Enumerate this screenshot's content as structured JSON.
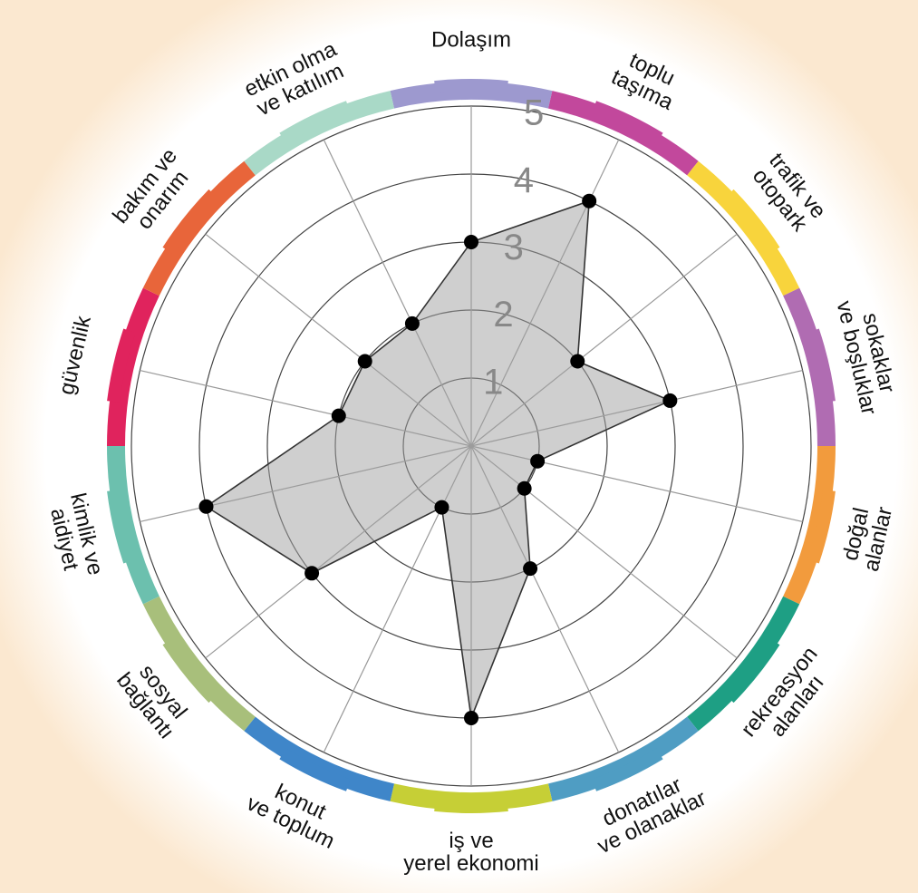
{
  "chart_data": {
    "type": "radar",
    "categories": [
      "Dolaşım",
      "toplu\ntaşıma",
      "trafik ve\notopark",
      "sokaklar\nve boşluklar",
      "doğal\nalanlar",
      "rekreasyon\nalanları",
      "donatılar\nve olanaklar",
      "iş ve\nyerel ekonomi",
      "konut\nve toplum",
      "sosyal\nbağlantı",
      "kimlik ve\naidiyet",
      "güvenlik",
      "bakım ve\nonarım",
      "etkin olma\nve katılım"
    ],
    "values": [
      3,
      4,
      2,
      3,
      1,
      1,
      2,
      4,
      1,
      3,
      4,
      2,
      2,
      2
    ],
    "colors": [
      "#9d99cf",
      "#c2489c",
      "#f8d43c",
      "#b06cb2",
      "#f29b3d",
      "#1e9f84",
      "#4f9dc3",
      "#c6cf36",
      "#3f86c9",
      "#a8bf7b",
      "#6cc0ae",
      "#e0235d",
      "#e8653a",
      "#a9d9c7"
    ],
    "ylim": [
      0,
      5
    ],
    "yticks": [
      1,
      2,
      3,
      4,
      5
    ],
    "grid": true
  }
}
